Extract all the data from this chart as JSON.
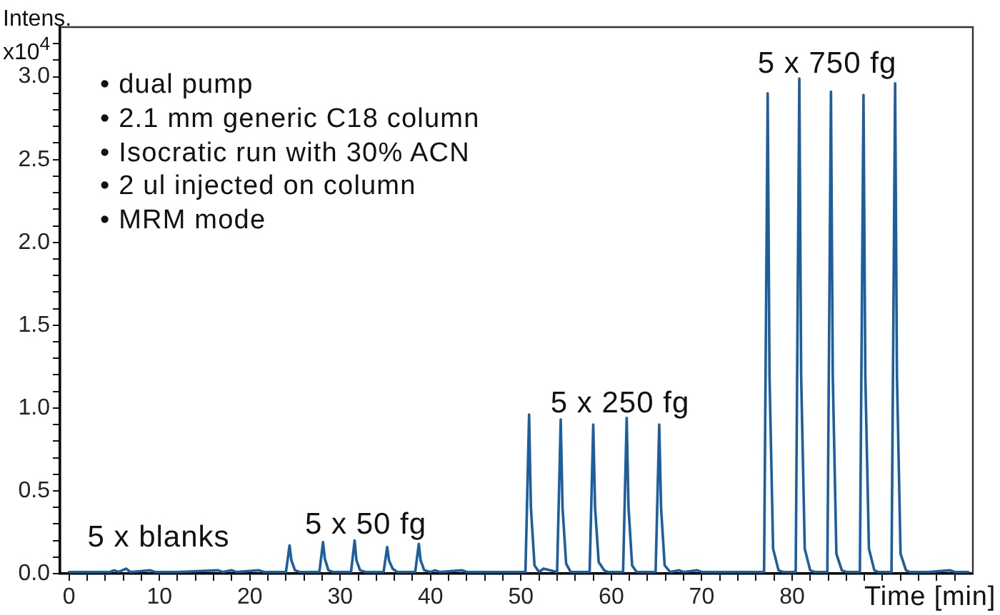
{
  "chart_data": {
    "type": "line",
    "ylabel": "Intens. x10$^{4}$",
    "xlabel": "Time [min]",
    "x": [
      0,
      2,
      4.5,
      5,
      5.5,
      6.3,
      6.8,
      9,
      9.5,
      12,
      16.5,
      17,
      18,
      18.5,
      21,
      21.6,
      24,
      24.4,
      24.6,
      25,
      25.5,
      27.7,
      28.1,
      28.3,
      28.7,
      29.2,
      31.2,
      31.6,
      31.8,
      32.2,
      32.8,
      34.8,
      35.2,
      35.4,
      35.8,
      36.3,
      38.3,
      38.7,
      38.9,
      39.3,
      40,
      40.5,
      41,
      43.5,
      44,
      50.5,
      50.9,
      51.1,
      51.5,
      52,
      52.5,
      53.2,
      54,
      54.4,
      54.6,
      55,
      55.5,
      57.6,
      58,
      58.2,
      58.6,
      59.2,
      59.6,
      61.3,
      61.7,
      61.9,
      62.3,
      62.8,
      64.9,
      65.3,
      65.5,
      65.9,
      66.5,
      67.5,
      68,
      69.5,
      70,
      76.9,
      77.3,
      77.5,
      77.9,
      78.5,
      79,
      80.4,
      80.8,
      81,
      81.4,
      82,
      82.5,
      83.9,
      84.3,
      84.5,
      84.9,
      85.5,
      86,
      87.5,
      87.9,
      88.1,
      88.5,
      89.1,
      89.5,
      91,
      91.4,
      91.6,
      92,
      92.6,
      93,
      95,
      97.5,
      98,
      99.5
    ],
    "series": [
      {
        "color": "#1c5e9e",
        "values": [
          0.01,
          0.01,
          0.01,
          0.02,
          0.01,
          0.03,
          0.01,
          0.02,
          0.01,
          0.01,
          0.02,
          0.01,
          0.02,
          0.01,
          0.02,
          0.01,
          0.01,
          0.17,
          0.08,
          0.02,
          0.01,
          0.01,
          0.19,
          0.09,
          0.02,
          0.01,
          0.01,
          0.2,
          0.08,
          0.02,
          0.01,
          0.01,
          0.16,
          0.08,
          0.03,
          0.01,
          0.01,
          0.18,
          0.08,
          0.02,
          0.01,
          0.02,
          0.01,
          0.02,
          0.01,
          0.01,
          0.96,
          0.4,
          0.05,
          0.01,
          0.03,
          0.02,
          0.01,
          0.93,
          0.4,
          0.06,
          0.01,
          0.01,
          0.9,
          0.4,
          0.07,
          0.02,
          0.01,
          0.01,
          0.94,
          0.4,
          0.05,
          0.01,
          0.01,
          0.9,
          0.4,
          0.05,
          0.01,
          0.02,
          0.01,
          0.02,
          0.01,
          0.01,
          2.9,
          1.2,
          0.15,
          0.02,
          0.01,
          0.01,
          2.99,
          1.2,
          0.15,
          0.02,
          0.01,
          0.01,
          2.91,
          1.2,
          0.12,
          0.02,
          0.01,
          0.01,
          2.89,
          1.2,
          0.15,
          0.02,
          0.01,
          0.01,
          2.96,
          1.2,
          0.12,
          0.02,
          0.01,
          0.01,
          0.02,
          0.01,
          0.01
        ]
      }
    ],
    "xlim": [
      -1,
      100
    ],
    "ylim": [
      0,
      3.3
    ],
    "xticks": [
      0,
      {
        "value": 2,
        "label": null
      },
      {
        "value": 4,
        "label": null
      },
      {
        "value": 6,
        "label": null
      },
      {
        "value": 8,
        "label": null
      },
      10,
      {
        "value": 12,
        "label": null
      },
      {
        "value": 14,
        "label": null
      },
      {
        "value": 16,
        "label": null
      },
      {
        "value": 18,
        "label": null
      },
      20,
      {
        "value": 22,
        "label": null
      },
      {
        "value": 24,
        "label": null
      },
      {
        "value": 26,
        "label": null
      },
      {
        "value": 28,
        "label": null
      },
      30,
      {
        "value": 32,
        "label": null
      },
      {
        "value": 34,
        "label": null
      },
      {
        "value": 36,
        "label": null
      },
      {
        "value": 38,
        "label": null
      },
      40,
      {
        "value": 42,
        "label": null
      },
      {
        "value": 44,
        "label": null
      },
      {
        "value": 46,
        "label": null
      },
      {
        "value": 48,
        "label": null
      },
      50,
      {
        "value": 52,
        "label": null
      },
      {
        "value": 54,
        "label": null
      },
      {
        "value": 56,
        "label": null
      },
      {
        "value": 58,
        "label": null
      },
      60,
      {
        "value": 62,
        "label": null
      },
      {
        "value": 64,
        "label": null
      },
      {
        "value": 66,
        "label": null
      },
      {
        "value": 68,
        "label": null
      },
      70,
      {
        "value": 72,
        "label": null
      },
      {
        "value": 74,
        "label": null
      },
      {
        "value": 76,
        "label": null
      },
      {
        "value": 78,
        "label": null
      },
      80,
      {
        "value": 82,
        "label": null
      },
      {
        "value": 84,
        "label": null
      },
      {
        "value": 86,
        "label": null
      },
      {
        "value": 88,
        "label": null
      },
      {
        "value": 90,
        "label": null
      },
      {
        "value": 92,
        "label": null
      },
      {
        "value": 94,
        "label": null
      },
      {
        "value": 96,
        "label": null
      },
      {
        "value": 98,
        "label": null
      }
    ],
    "yticks": [
      {
        "value": 0,
        "label": "0.0"
      },
      {
        "value": 0.1,
        "label": null
      },
      {
        "value": 0.2,
        "label": null
      },
      {
        "value": 0.3,
        "label": null
      },
      {
        "value": 0.4,
        "label": null
      },
      {
        "value": 0.5,
        "label": "0.5"
      },
      {
        "value": 0.6,
        "label": null
      },
      {
        "value": 0.7,
        "label": null
      },
      {
        "value": 0.8,
        "label": null
      },
      {
        "value": 0.9,
        "label": null
      },
      {
        "value": 1,
        "label": "1.0"
      },
      {
        "value": 1.1,
        "label": null
      },
      {
        "value": 1.2,
        "label": null
      },
      {
        "value": 1.3,
        "label": null
      },
      {
        "value": 1.4,
        "label": null
      },
      {
        "value": 1.5,
        "label": "1.5"
      },
      {
        "value": 1.6,
        "label": null
      },
      {
        "value": 1.7,
        "label": null
      },
      {
        "value": 1.8,
        "label": null
      },
      {
        "value": 1.9,
        "label": null
      },
      {
        "value": 2,
        "label": "2.0"
      },
      {
        "value": 2.1,
        "label": null
      },
      {
        "value": 2.2,
        "label": null
      },
      {
        "value": 2.3,
        "label": null
      },
      {
        "value": 2.4,
        "label": null
      },
      {
        "value": 2.5,
        "label": "2.5"
      },
      {
        "value": 2.6,
        "label": null
      },
      {
        "value": 2.7,
        "label": null
      },
      {
        "value": 2.8,
        "label": null
      },
      {
        "value": 2.9,
        "label": null
      },
      {
        "value": 3,
        "label": "3.0"
      },
      {
        "value": 3.1,
        "label": null
      },
      {
        "value": 3.2,
        "label": null
      }
    ],
    "grid": false,
    "legend": false,
    "marker": "none",
    "annotations": [
      "• dual pump",
      "• 2.1 mm generic C18 column",
      "• Isocratic run with 30% ACN",
      "• 2 ul injected on column",
      "• MRM mode",
      "5 x blanks",
      "5 x 50 fg",
      "5 x 250 fg",
      "5 x 750 fg"
    ]
  }
}
